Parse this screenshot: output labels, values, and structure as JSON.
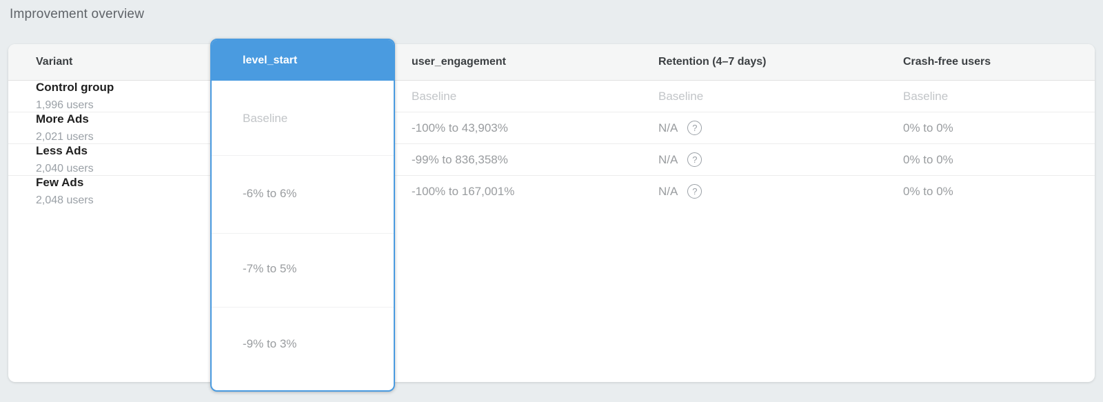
{
  "page": {
    "title": "Improvement overview",
    "background_color": "#e9edef",
    "accent_blue": "#4a9be0"
  },
  "table": {
    "columns": [
      {
        "label": "Variant",
        "highlighted": false
      },
      {
        "label": "level_start",
        "highlighted": true
      },
      {
        "label": "user_engagement",
        "highlighted": false
      },
      {
        "label": "Retention (4–7 days)",
        "highlighted": false
      },
      {
        "label": "Crash-free users",
        "highlighted": false
      }
    ],
    "rows": [
      {
        "variant": "Control group",
        "users": "1,996 users",
        "level_start": "Baseline",
        "user_engagement": "Baseline",
        "retention": "Baseline",
        "retention_has_help": false,
        "crash_free": "Baseline",
        "baseline": true
      },
      {
        "variant": "More Ads",
        "users": "2,021 users",
        "level_start": "-6% to 6%",
        "user_engagement": "-100% to 43,903%",
        "retention": "N/A",
        "retention_has_help": true,
        "crash_free": "0% to 0%",
        "baseline": false
      },
      {
        "variant": "Less Ads",
        "users": "2,040 users",
        "level_start": "-7% to 5%",
        "user_engagement": "-99% to 836,358%",
        "retention": "N/A",
        "retention_has_help": true,
        "crash_free": "0% to 0%",
        "baseline": false
      },
      {
        "variant": "Few Ads",
        "users": "2,048 users",
        "level_start": "-9% to 3%",
        "user_engagement": "-100% to 167,001%",
        "retention": "N/A",
        "retention_has_help": true,
        "crash_free": "0% to 0%",
        "baseline": false
      }
    ],
    "help_icon_glyph": "?"
  }
}
